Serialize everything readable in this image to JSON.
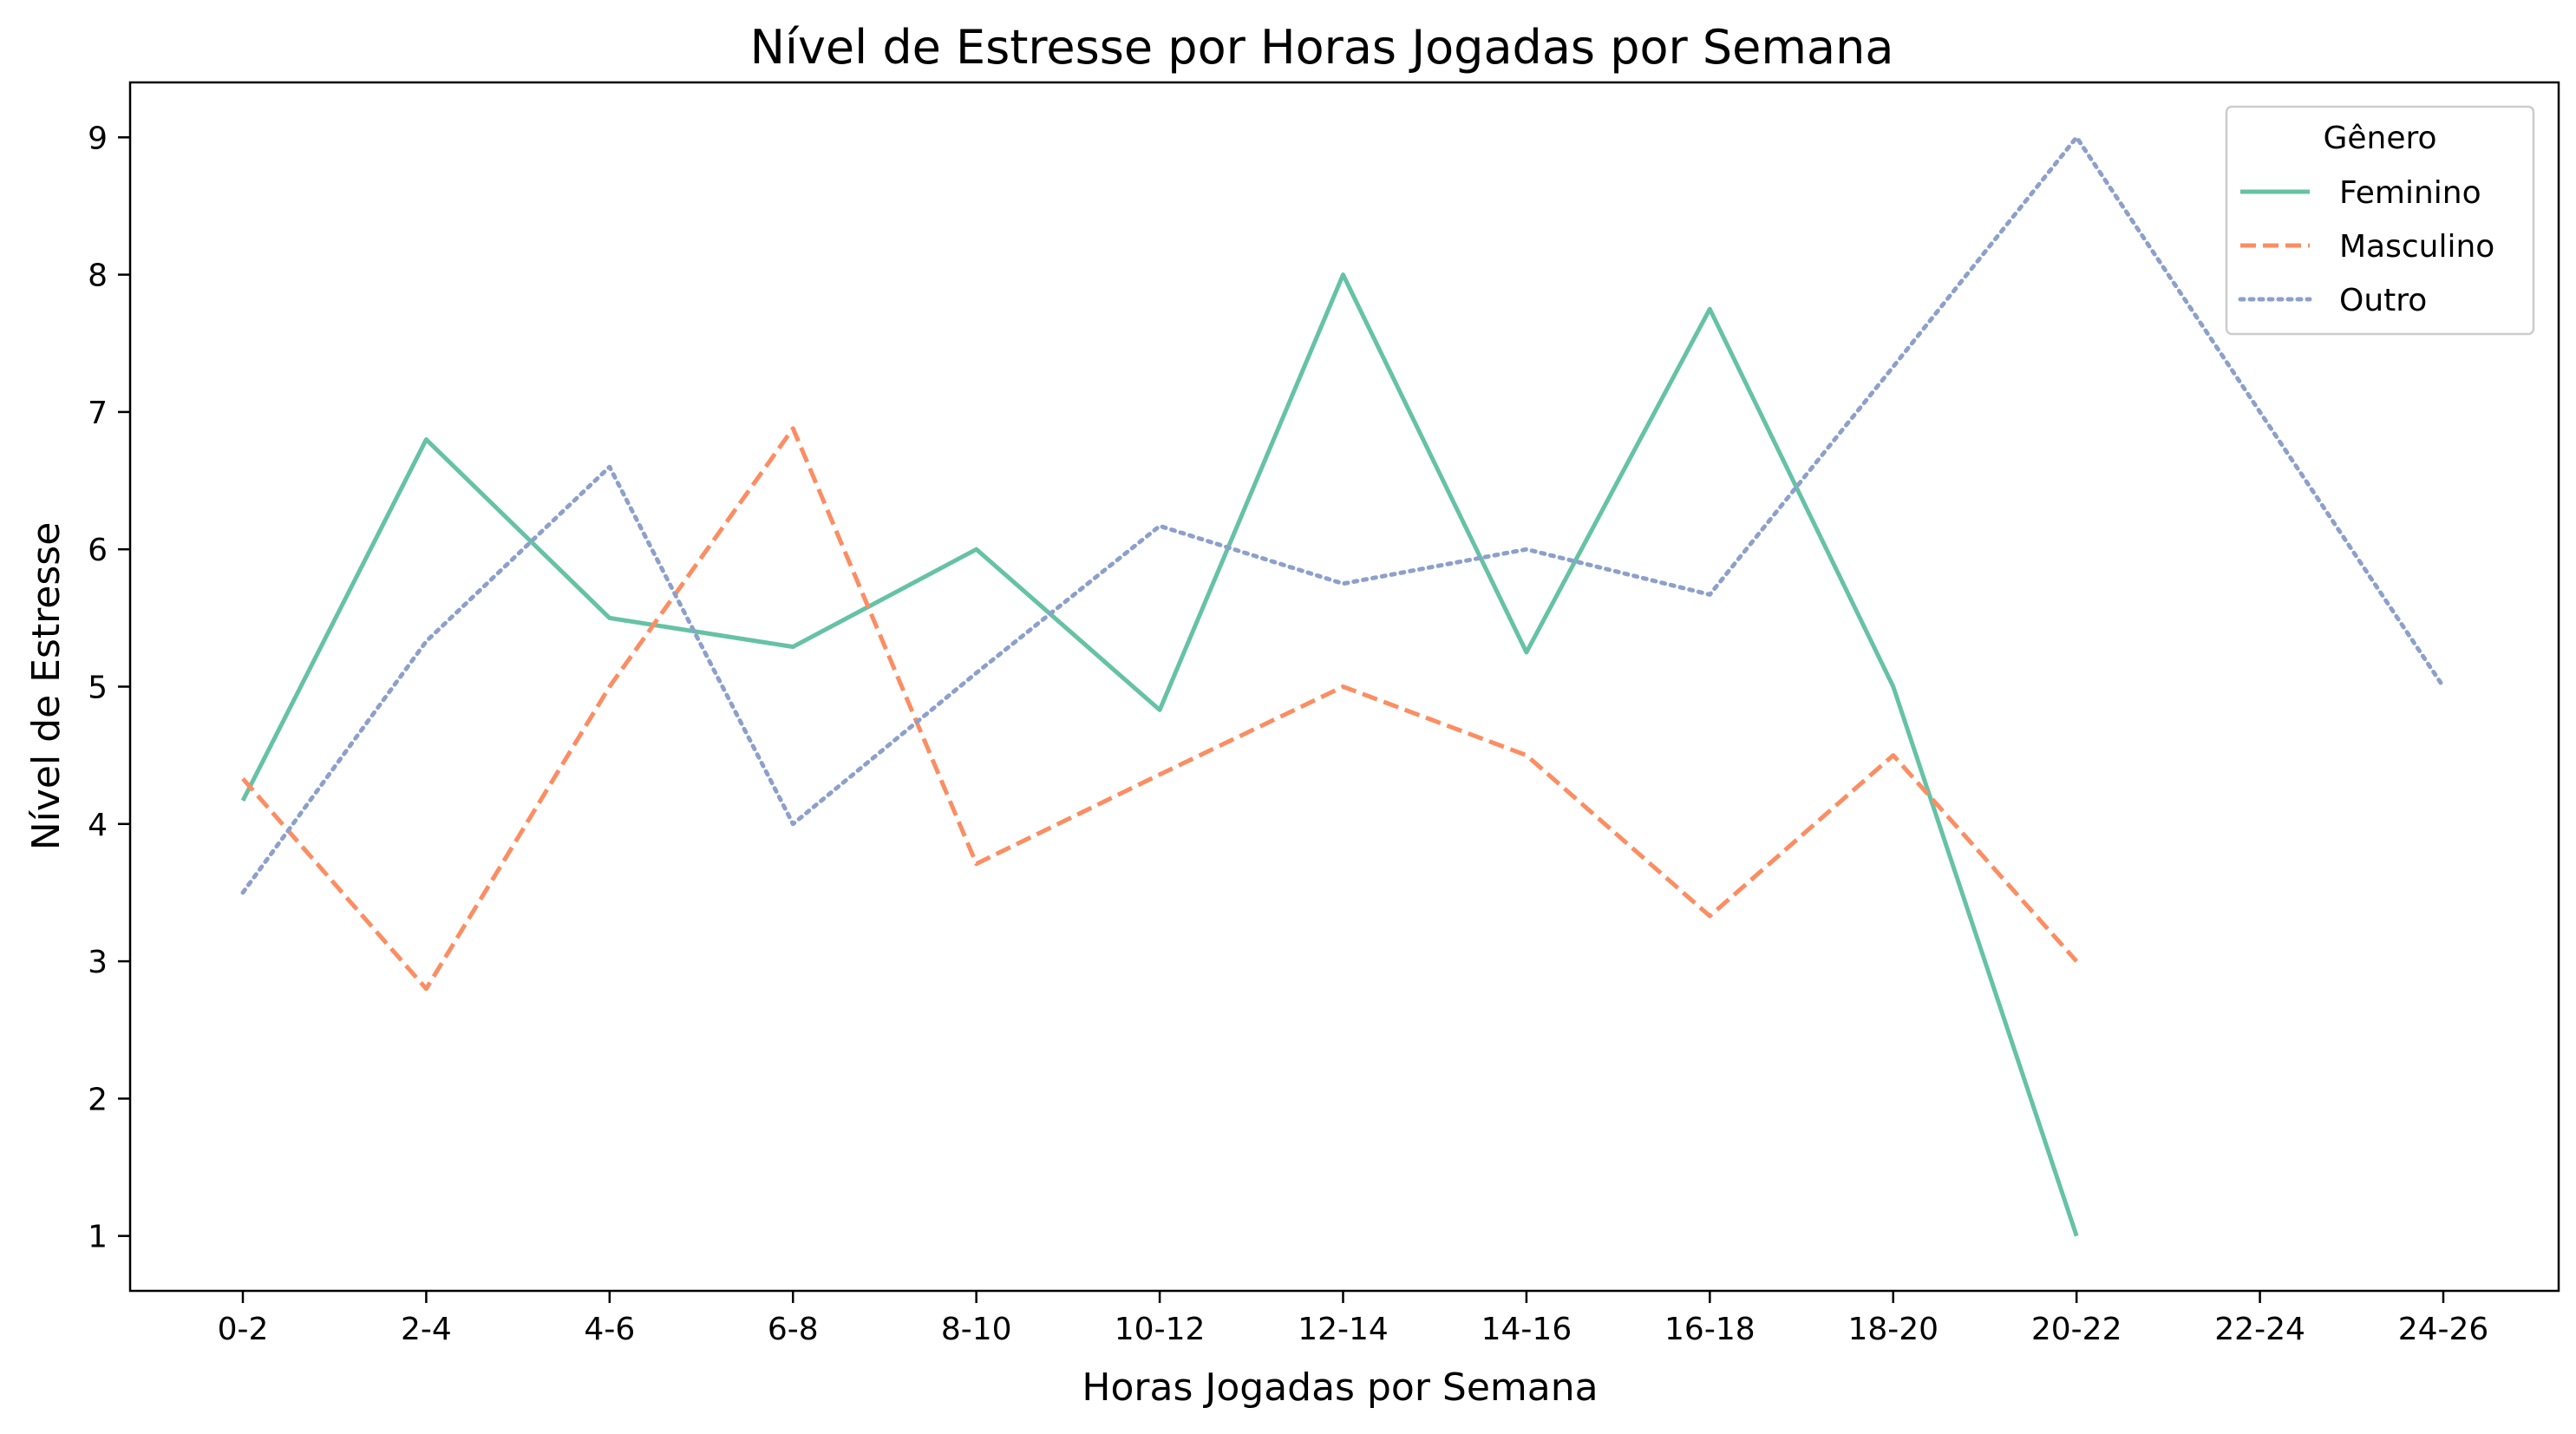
{
  "chart_data": {
    "type": "line",
    "title": "Nível de Estresse por Horas Jogadas por Semana",
    "xlabel": "Horas Jogadas por Semana",
    "ylabel": "Nível de Estresse",
    "categories": [
      "0-2",
      "2-4",
      "4-6",
      "6-8",
      "8-10",
      "10-12",
      "12-14",
      "14-16",
      "16-18",
      "18-20",
      "20-22",
      "22-24",
      "24-26"
    ],
    "yticks": [
      1,
      2,
      3,
      4,
      5,
      6,
      7,
      8,
      9
    ],
    "ylim": [
      0.6,
      9.4
    ],
    "grid": false,
    "legend": {
      "title": "Gênero",
      "position": "top-right"
    },
    "series": [
      {
        "name": "Feminino",
        "color": "#66c2a5",
        "style": "solid",
        "values": [
          4.17,
          6.8,
          5.5,
          5.29,
          6.0,
          4.83,
          8.0,
          5.25,
          7.75,
          5.0,
          1.0,
          null,
          null
        ]
      },
      {
        "name": "Masculino",
        "color": "#fc8d62",
        "style": "dashed",
        "values": [
          4.33,
          2.8,
          5.0,
          6.88,
          3.71,
          4.36,
          5.0,
          4.5,
          3.33,
          4.5,
          3.0,
          null,
          null
        ]
      },
      {
        "name": "Outro",
        "color": "#8da0cb",
        "style": "dotted",
        "values": [
          3.5,
          5.33,
          6.6,
          4.0,
          5.1,
          6.17,
          5.75,
          6.0,
          5.67,
          7.33,
          9.0,
          7.0,
          5.0
        ]
      }
    ]
  }
}
